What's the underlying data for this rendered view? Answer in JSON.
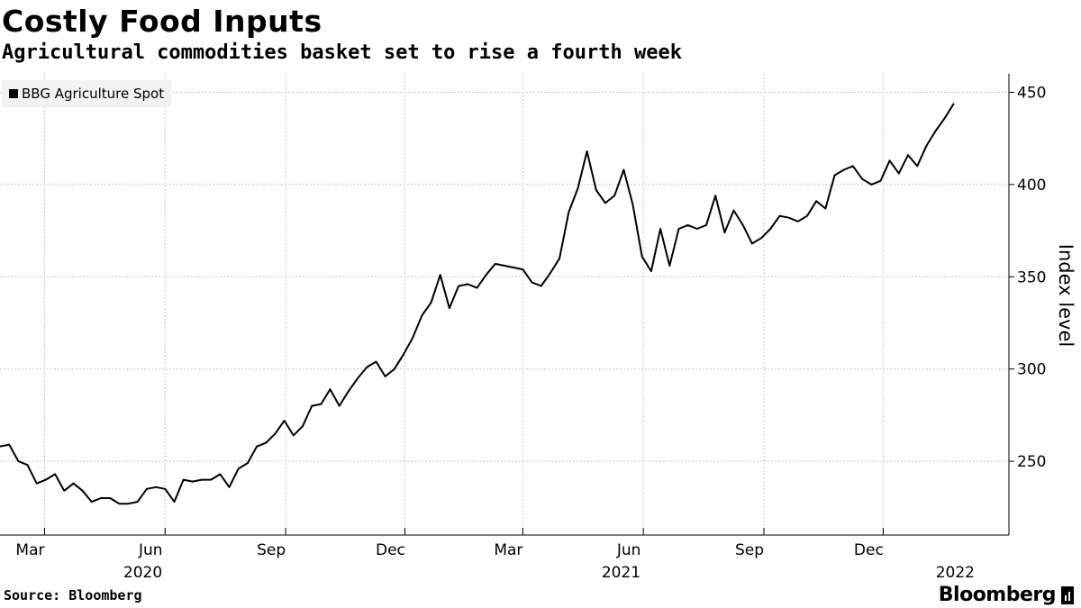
{
  "header": {
    "title": "Costly Food Inputs",
    "subtitle": "Agricultural commodities basket set to rise a fourth week"
  },
  "footer": {
    "source": "Source: Bloomberg",
    "brand": "Bloomberg"
  },
  "colors": {
    "line": "#000000",
    "grid": "#c8c8c8",
    "legend_bg": "#f2f2f2"
  },
  "chart_data": {
    "type": "line",
    "title": "Costly Food Inputs",
    "subtitle": "Agricultural commodities basket set to rise a fourth week",
    "ylabel": "Index level",
    "ylim": [
      210,
      460
    ],
    "yticks": [
      250,
      300,
      350,
      400,
      450
    ],
    "x_range": [
      "2020-01-27",
      "2022-03-07"
    ],
    "y_axis_side": "right",
    "grid": true,
    "legend_placement": "top-left",
    "x_ticks": [
      {
        "date": "2020-03-01",
        "label": "Mar"
      },
      {
        "date": "2020-06-01",
        "label": "Jun"
      },
      {
        "date": "2020-09-01",
        "label": "Sep"
      },
      {
        "date": "2020-12-01",
        "label": "Dec"
      },
      {
        "date": "2021-03-01",
        "label": "Mar"
      },
      {
        "date": "2021-06-01",
        "label": "Jun"
      },
      {
        "date": "2021-09-01",
        "label": "Sep"
      },
      {
        "date": "2021-12-01",
        "label": "Dec"
      }
    ],
    "year_labels": [
      {
        "date": "2020-05-15",
        "label": "2020"
      },
      {
        "date": "2021-05-15",
        "label": "2021"
      },
      {
        "date": "2022-01-25",
        "label": "2022"
      }
    ],
    "series": [
      {
        "name": "BBG Agriculture Spot",
        "points": [
          [
            "2020-01-27",
            258
          ],
          [
            "2020-02-03",
            259
          ],
          [
            "2020-02-10",
            250
          ],
          [
            "2020-02-17",
            248
          ],
          [
            "2020-02-24",
            238
          ],
          [
            "2020-03-02",
            240
          ],
          [
            "2020-03-09",
            243
          ],
          [
            "2020-03-16",
            234
          ],
          [
            "2020-03-23",
            238
          ],
          [
            "2020-03-30",
            234
          ],
          [
            "2020-04-06",
            228
          ],
          [
            "2020-04-13",
            230
          ],
          [
            "2020-04-20",
            230
          ],
          [
            "2020-04-27",
            227
          ],
          [
            "2020-05-04",
            227
          ],
          [
            "2020-05-11",
            228
          ],
          [
            "2020-05-18",
            235
          ],
          [
            "2020-05-25",
            236
          ],
          [
            "2020-06-01",
            235
          ],
          [
            "2020-06-08",
            228
          ],
          [
            "2020-06-15",
            240
          ],
          [
            "2020-06-22",
            239
          ],
          [
            "2020-06-29",
            240
          ],
          [
            "2020-07-06",
            240
          ],
          [
            "2020-07-13",
            243
          ],
          [
            "2020-07-20",
            236
          ],
          [
            "2020-07-27",
            246
          ],
          [
            "2020-08-03",
            249
          ],
          [
            "2020-08-10",
            258
          ],
          [
            "2020-08-17",
            260
          ],
          [
            "2020-08-24",
            265
          ],
          [
            "2020-08-31",
            272
          ],
          [
            "2020-09-07",
            264
          ],
          [
            "2020-09-14",
            269
          ],
          [
            "2020-09-21",
            280
          ],
          [
            "2020-09-28",
            281
          ],
          [
            "2020-10-05",
            289
          ],
          [
            "2020-10-12",
            280
          ],
          [
            "2020-10-19",
            288
          ],
          [
            "2020-10-26",
            295
          ],
          [
            "2020-11-02",
            301
          ],
          [
            "2020-11-09",
            304
          ],
          [
            "2020-11-16",
            296
          ],
          [
            "2020-11-23",
            300
          ],
          [
            "2020-11-30",
            308
          ],
          [
            "2020-12-07",
            317
          ],
          [
            "2020-12-14",
            329
          ],
          [
            "2020-12-21",
            336
          ],
          [
            "2020-12-28",
            351
          ],
          [
            "2021-01-04",
            333
          ],
          [
            "2021-01-11",
            345
          ],
          [
            "2021-01-18",
            346
          ],
          [
            "2021-01-25",
            344
          ],
          [
            "2021-02-01",
            351
          ],
          [
            "2021-02-08",
            357
          ],
          [
            "2021-02-15",
            356
          ],
          [
            "2021-02-22",
            355
          ],
          [
            "2021-03-01",
            354
          ],
          [
            "2021-03-08",
            347
          ],
          [
            "2021-03-15",
            345
          ],
          [
            "2021-03-22",
            352
          ],
          [
            "2021-03-29",
            360
          ],
          [
            "2021-04-05",
            385
          ],
          [
            "2021-04-12",
            398
          ],
          [
            "2021-04-19",
            418
          ],
          [
            "2021-04-26",
            397
          ],
          [
            "2021-05-03",
            390
          ],
          [
            "2021-05-10",
            394
          ],
          [
            "2021-05-17",
            408
          ],
          [
            "2021-05-24",
            389
          ],
          [
            "2021-05-31",
            361
          ],
          [
            "2021-06-07",
            353
          ],
          [
            "2021-06-14",
            376
          ],
          [
            "2021-06-21",
            356
          ],
          [
            "2021-06-28",
            376
          ],
          [
            "2021-07-05",
            378
          ],
          [
            "2021-07-12",
            376
          ],
          [
            "2021-07-19",
            378
          ],
          [
            "2021-07-26",
            394
          ],
          [
            "2021-08-02",
            374
          ],
          [
            "2021-08-09",
            386
          ],
          [
            "2021-08-16",
            378
          ],
          [
            "2021-08-23",
            368
          ],
          [
            "2021-08-30",
            371
          ],
          [
            "2021-09-06",
            376
          ],
          [
            "2021-09-13",
            383
          ],
          [
            "2021-09-20",
            382
          ],
          [
            "2021-09-27",
            380
          ],
          [
            "2021-10-04",
            383
          ],
          [
            "2021-10-11",
            391
          ],
          [
            "2021-10-18",
            387
          ],
          [
            "2021-10-25",
            405
          ],
          [
            "2021-11-01",
            408
          ],
          [
            "2021-11-08",
            410
          ],
          [
            "2021-11-15",
            403
          ],
          [
            "2021-11-22",
            400
          ],
          [
            "2021-11-29",
            402
          ],
          [
            "2021-12-06",
            413
          ],
          [
            "2021-12-13",
            406
          ],
          [
            "2021-12-20",
            416
          ],
          [
            "2021-12-27",
            410
          ],
          [
            "2022-01-03",
            421
          ],
          [
            "2022-01-10",
            429
          ],
          [
            "2022-01-17",
            436
          ],
          [
            "2022-01-24",
            444
          ]
        ]
      }
    ]
  }
}
